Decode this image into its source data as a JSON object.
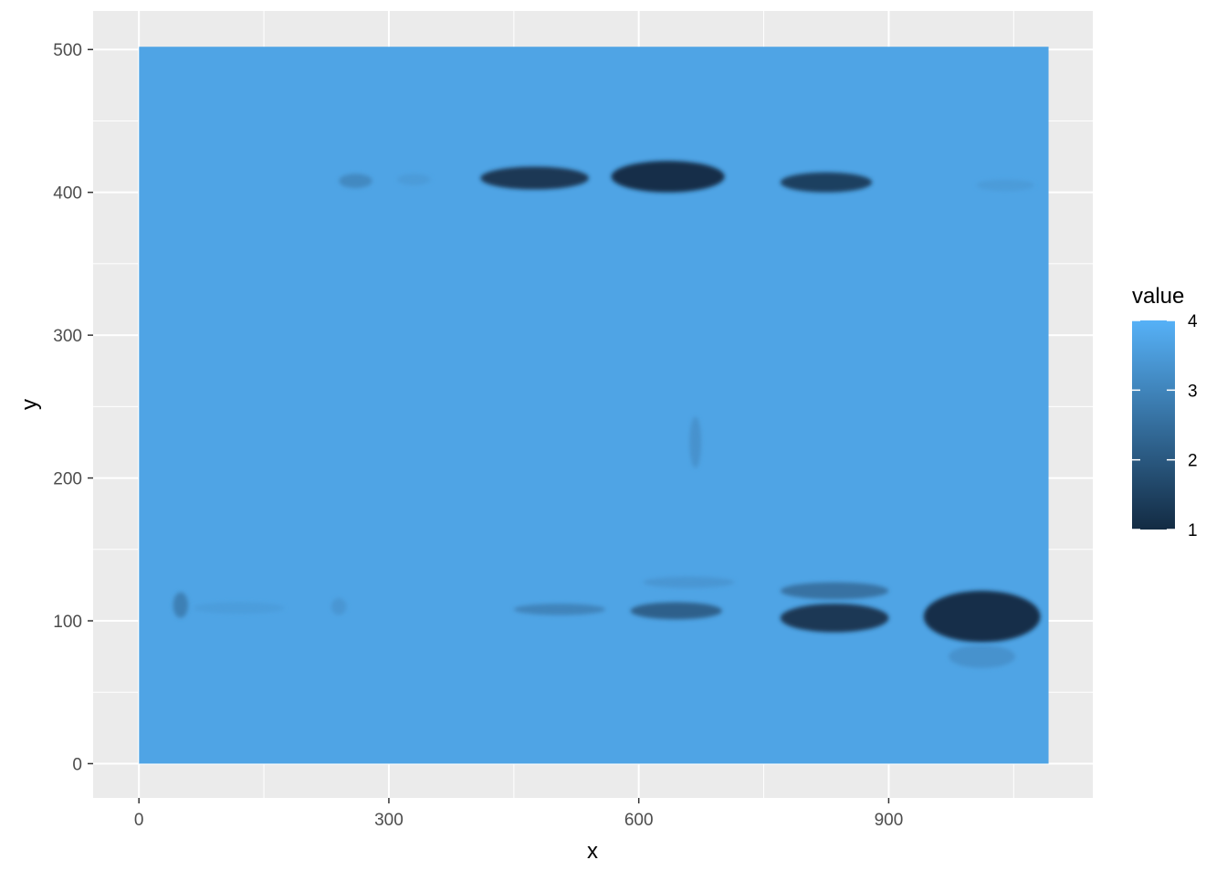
{
  "chart_data": {
    "type": "heatmap",
    "title": "",
    "xlabel": "x",
    "ylabel": "y",
    "xlim": [
      -55,
      1145
    ],
    "ylim": [
      -24,
      527
    ],
    "x_ticks": [
      0,
      300,
      600,
      900
    ],
    "y_ticks": [
      0,
      100,
      200,
      300,
      400,
      500
    ],
    "x_tick_labels": [
      "0",
      "300",
      "600",
      "900"
    ],
    "y_tick_labels": [
      "0",
      "100",
      "200",
      "300",
      "400",
      "500"
    ],
    "x_minor_ticks": [
      150,
      450,
      750,
      1050
    ],
    "y_minor_ticks": [
      50,
      150,
      250,
      350,
      450
    ],
    "raster_extent": {
      "x": [
        0,
        1092
      ],
      "y": [
        0,
        502
      ]
    },
    "background_value": 3.7,
    "legend": {
      "title": "value",
      "min": 1,
      "max": 4,
      "ticks": [
        1,
        2,
        3,
        4
      ],
      "tick_labels": [
        "1",
        "2",
        "3",
        "4"
      ],
      "color_low": "#132B43",
      "color_high": "#56B1F7",
      "position": "right"
    },
    "grid": true,
    "panel_background": "#EBEBEB",
    "bands": [
      {
        "x": 50,
        "y": 111,
        "wx": 9,
        "wy": 9,
        "value": 2.9
      },
      {
        "x": 120,
        "y": 109,
        "wx": 55,
        "wy": 4,
        "value": 3.55
      },
      {
        "x": 240,
        "y": 110,
        "wx": 9,
        "wy": 6,
        "value": 3.4
      },
      {
        "x": 260,
        "y": 408,
        "wx": 20,
        "wy": 5,
        "value": 3.1
      },
      {
        "x": 330,
        "y": 409,
        "wx": 20,
        "wy": 4,
        "value": 3.5
      },
      {
        "x": 475,
        "y": 410,
        "wx": 65,
        "wy": 8,
        "value": 1.3
      },
      {
        "x": 635,
        "y": 411,
        "wx": 68,
        "wy": 11,
        "value": 1.1
      },
      {
        "x": 825,
        "y": 407,
        "wx": 55,
        "wy": 7,
        "value": 1.5
      },
      {
        "x": 1040,
        "y": 405,
        "wx": 35,
        "wy": 4,
        "value": 3.5
      },
      {
        "x": 505,
        "y": 108,
        "wx": 55,
        "wy": 4,
        "value": 3.0
      },
      {
        "x": 645,
        "y": 107,
        "wx": 55,
        "wy": 6,
        "value": 2.2
      },
      {
        "x": 660,
        "y": 127,
        "wx": 55,
        "wy": 4,
        "value": 3.4
      },
      {
        "x": 835,
        "y": 102,
        "wx": 65,
        "wy": 10,
        "value": 1.3
      },
      {
        "x": 835,
        "y": 121,
        "wx": 65,
        "wy": 6,
        "value": 2.6
      },
      {
        "x": 1012,
        "y": 103,
        "wx": 70,
        "wy": 18,
        "value": 1.1
      },
      {
        "x": 1012,
        "y": 75,
        "wx": 40,
        "wy": 8,
        "value": 3.3
      },
      {
        "x": 668,
        "y": 225,
        "wx": 7,
        "wy": 18,
        "value": 3.3
      }
    ]
  }
}
